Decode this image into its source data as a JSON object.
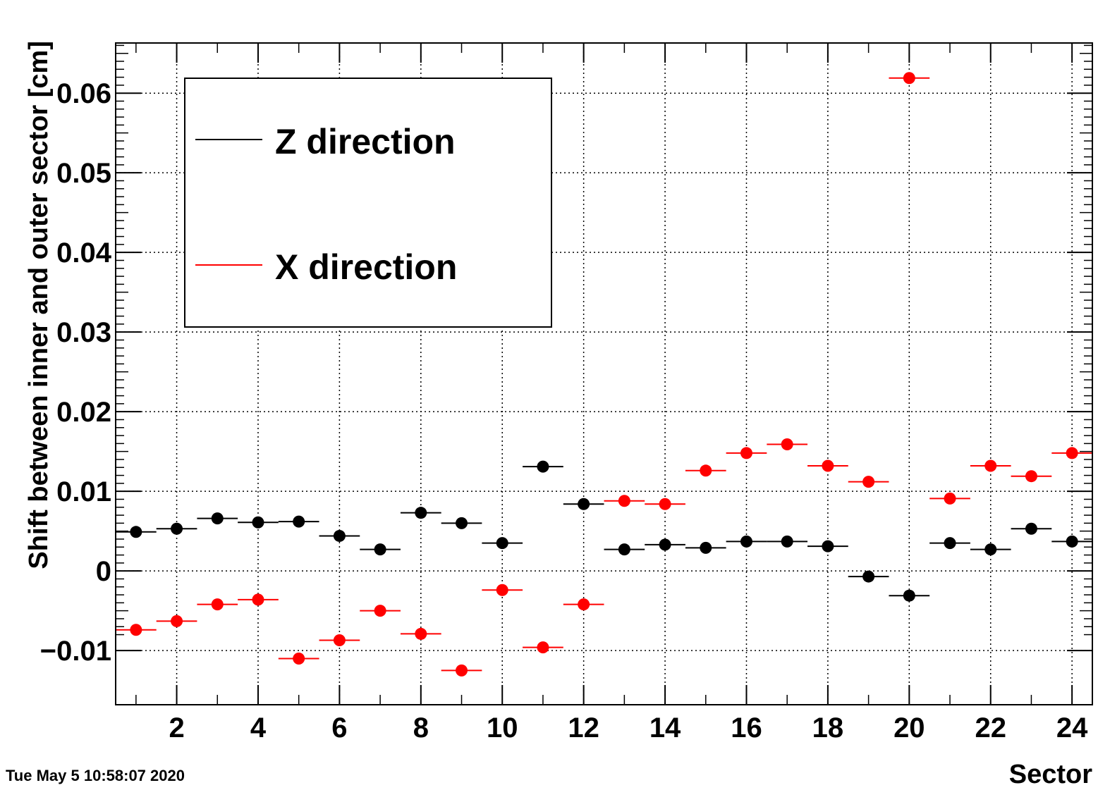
{
  "timestamp": "Tue May  5 10:58:07 2020",
  "chart_data": {
    "type": "scatter",
    "xlabel": "Sector",
    "ylabel": "Shift between inner and outer sector [cm]",
    "xlim": [
      0.5,
      24.5
    ],
    "ylim": [
      -0.0168,
      0.0663
    ],
    "x_ticks": [
      2,
      4,
      6,
      8,
      10,
      12,
      14,
      16,
      18,
      20,
      22,
      24
    ],
    "x_tick_labels": [
      "2",
      "4",
      "6",
      "8",
      "10",
      "12",
      "14",
      "16",
      "18",
      "20",
      "22",
      "24"
    ],
    "y_ticks": [
      -0.01,
      0,
      0.01,
      0.02,
      0.03,
      0.04,
      0.05,
      0.06
    ],
    "y_tick_labels": [
      "−0.01",
      "0",
      "0.01",
      "0.02",
      "0.03",
      "0.04",
      "0.05",
      "0.06"
    ],
    "grid": true,
    "legend_position": "top-left",
    "x": [
      1,
      2,
      3,
      4,
      5,
      6,
      7,
      8,
      9,
      10,
      11,
      12,
      13,
      14,
      15,
      16,
      17,
      18,
      19,
      20,
      21,
      22,
      23,
      24
    ],
    "series": [
      {
        "name": "Z direction",
        "color": "#000000",
        "values": [
          0.0049,
          0.0053,
          0.0066,
          0.0061,
          0.0062,
          0.0044,
          0.0027,
          0.0073,
          0.006,
          0.0035,
          0.0131,
          0.0084,
          0.0027,
          0.0033,
          0.0029,
          0.0037,
          0.0037,
          0.0031,
          -0.0007,
          -0.0031,
          0.0035,
          0.0027,
          0.0053,
          0.0037
        ]
      },
      {
        "name": "X direction",
        "color": "#ff0000",
        "values": [
          -0.0074,
          -0.0063,
          -0.0042,
          -0.0036,
          -0.011,
          -0.0087,
          -0.005,
          -0.0079,
          -0.0125,
          -0.0024,
          -0.0096,
          -0.0042,
          0.0088,
          0.0084,
          0.0126,
          0.0148,
          0.0159,
          0.0132,
          0.0112,
          0.0619,
          0.0091,
          0.0132,
          0.0119,
          0.0148
        ]
      }
    ]
  }
}
